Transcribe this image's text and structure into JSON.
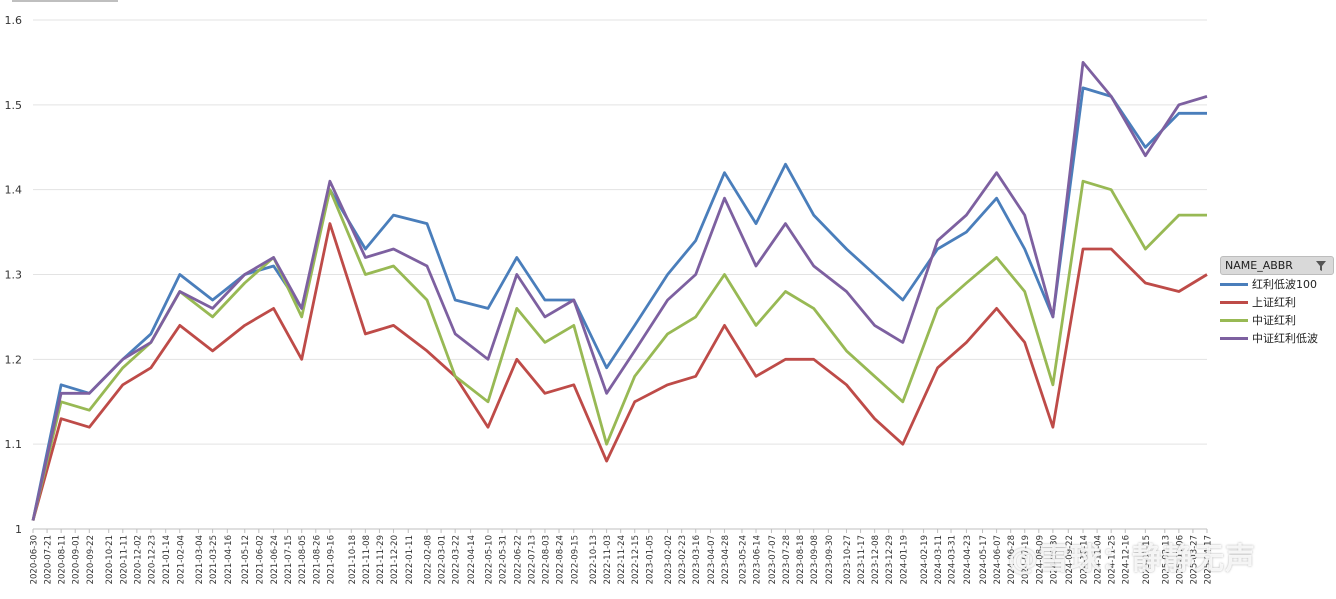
{
  "chart_data": {
    "type": "line",
    "title": "",
    "xlabel": "",
    "ylabel": "",
    "ylim": [
      1.0,
      1.6
    ],
    "y_ticks": [
      "1",
      "1.1",
      "1.2",
      "1.3",
      "1.4",
      "1.5",
      "1.6"
    ],
    "grid": "horizontal",
    "legend_position": "right",
    "legend_title": "NAME_ABBR",
    "x_tick_labels": [
      "2020-06-30",
      "2020-07-21",
      "2020-08-11",
      "2020-09-01",
      "2020-09-22",
      "2020-10-21",
      "2020-11-11",
      "2020-12-02",
      "2020-12-23",
      "2021-01-14",
      "2021-02-04",
      "2021-03-04",
      "2021-03-25",
      "2021-04-16",
      "2021-05-12",
      "2021-06-02",
      "2021-06-24",
      "2021-07-15",
      "2021-08-05",
      "2021-08-26",
      "2021-09-16",
      "2021-10-18",
      "2021-11-08",
      "2021-11-29",
      "2021-12-20",
      "2022-01-11",
      "2022-02-08",
      "2022-03-01",
      "2022-03-22",
      "2022-04-14",
      "2022-05-10",
      "2022-05-31",
      "2022-06-22",
      "2022-07-13",
      "2022-08-03",
      "2022-08-24",
      "2022-09-15",
      "2022-10-13",
      "2022-11-03",
      "2022-11-24",
      "2022-12-15",
      "2023-01-05",
      "2023-02-02",
      "2023-02-23",
      "2023-03-16",
      "2023-04-07",
      "2023-04-28",
      "2023-05-24",
      "2023-06-14",
      "2023-07-07",
      "2023-07-28",
      "2023-08-18",
      "2023-09-08",
      "2023-09-30",
      "2023-10-27",
      "2023-11-17",
      "2023-12-08",
      "2023-12-29",
      "2024-01-19",
      "2024-02-19",
      "2024-03-11",
      "2024-03-31",
      "2024-04-23",
      "2024-05-17",
      "2024-06-07",
      "2024-06-28",
      "2024-07-19",
      "2024-08-09",
      "2024-08-30",
      "2024-09-22",
      "2024-10-14",
      "2024-11-04",
      "2024-11-25",
      "2024-12-16",
      "2025-01-15",
      "2025-02-13",
      "2025-03-06",
      "2025-03-27",
      "2025-04-17"
    ],
    "x": [
      "2020-06-30",
      "2020-08-11",
      "2020-09-22",
      "2020-11-11",
      "2020-12-23",
      "2021-02-04",
      "2021-03-25",
      "2021-05-12",
      "2021-06-24",
      "2021-08-05",
      "2021-09-16",
      "2021-11-08",
      "2021-12-20",
      "2022-02-08",
      "2022-03-22",
      "2022-05-10",
      "2022-06-22",
      "2022-08-03",
      "2022-09-15",
      "2022-11-03",
      "2022-12-15",
      "2023-02-02",
      "2023-03-16",
      "2023-04-28",
      "2023-06-14",
      "2023-07-28",
      "2023-09-08",
      "2023-10-27",
      "2023-12-08",
      "2024-01-19",
      "2024-03-11",
      "2024-04-23",
      "2024-06-07",
      "2024-07-19",
      "2024-08-30",
      "2024-10-14",
      "2024-11-25",
      "2025-01-15",
      "2025-03-06",
      "2025-04-17"
    ],
    "series": [
      {
        "name": "红利低波100",
        "color": "#4a7ebb",
        "values": [
          1.01,
          1.17,
          1.16,
          1.2,
          1.23,
          1.3,
          1.27,
          1.3,
          1.31,
          1.26,
          1.4,
          1.33,
          1.37,
          1.36,
          1.27,
          1.26,
          1.32,
          1.27,
          1.27,
          1.19,
          1.24,
          1.3,
          1.34,
          1.42,
          1.36,
          1.43,
          1.37,
          1.33,
          1.3,
          1.27,
          1.33,
          1.35,
          1.39,
          1.33,
          1.25,
          1.52,
          1.51,
          1.45,
          1.49,
          1.49
        ]
      },
      {
        "name": "上证红利",
        "color": "#be4b48",
        "values": [
          1.01,
          1.13,
          1.12,
          1.17,
          1.19,
          1.24,
          1.21,
          1.24,
          1.26,
          1.2,
          1.36,
          1.23,
          1.24,
          1.21,
          1.18,
          1.12,
          1.2,
          1.16,
          1.17,
          1.08,
          1.15,
          1.17,
          1.18,
          1.24,
          1.18,
          1.2,
          1.2,
          1.17,
          1.13,
          1.1,
          1.19,
          1.22,
          1.26,
          1.22,
          1.12,
          1.33,
          1.33,
          1.29,
          1.28,
          1.3
        ]
      },
      {
        "name": "中证红利",
        "color": "#98b954",
        "values": [
          1.01,
          1.15,
          1.14,
          1.19,
          1.22,
          1.28,
          1.25,
          1.29,
          1.32,
          1.25,
          1.4,
          1.3,
          1.31,
          1.27,
          1.18,
          1.15,
          1.26,
          1.22,
          1.24,
          1.1,
          1.18,
          1.23,
          1.25,
          1.3,
          1.24,
          1.28,
          1.26,
          1.21,
          1.18,
          1.15,
          1.26,
          1.29,
          1.32,
          1.28,
          1.17,
          1.41,
          1.4,
          1.33,
          1.37,
          1.37
        ]
      },
      {
        "name": "中证红利低波",
        "color": "#7d60a0",
        "values": [
          1.01,
          1.16,
          1.16,
          1.2,
          1.22,
          1.28,
          1.26,
          1.3,
          1.32,
          1.26,
          1.41,
          1.32,
          1.33,
          1.31,
          1.23,
          1.2,
          1.3,
          1.25,
          1.27,
          1.16,
          1.21,
          1.27,
          1.3,
          1.39,
          1.31,
          1.36,
          1.31,
          1.28,
          1.24,
          1.22,
          1.34,
          1.37,
          1.42,
          1.37,
          1.25,
          1.55,
          1.51,
          1.44,
          1.5,
          1.51
        ]
      }
    ]
  },
  "legend": {
    "title": "NAME_ABBR",
    "filter_icon": "funnel-filter-icon",
    "items": [
      "红利低波100",
      "上证红利",
      "中证红利",
      "中证红利低波"
    ]
  },
  "watermark": "@雪球：静静无声"
}
